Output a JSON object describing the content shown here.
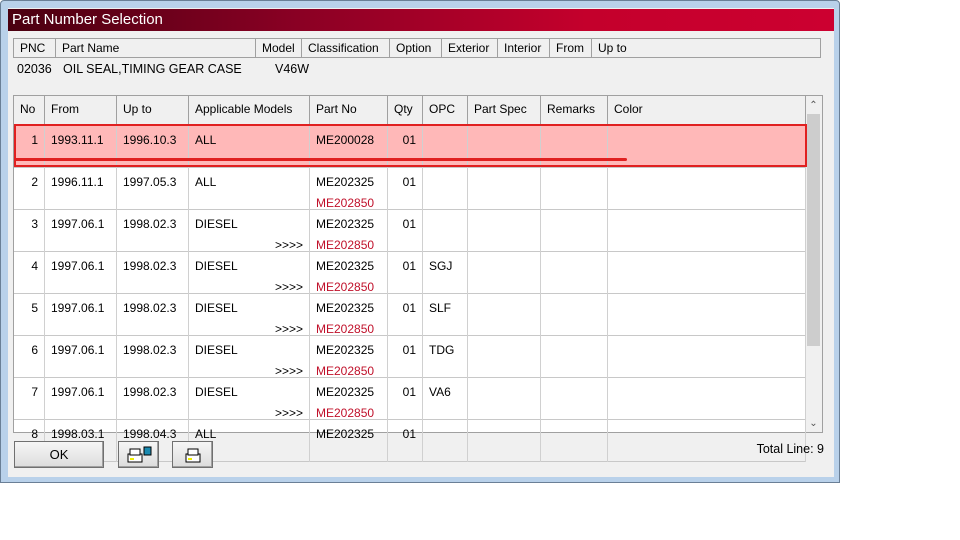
{
  "window": {
    "title": "Part Number Selection"
  },
  "part_header": {
    "columns": [
      "PNC",
      "Part Name",
      "Model",
      "Classification",
      "Option",
      "Exterior",
      "Interior",
      "From",
      "Up to"
    ],
    "values": {
      "pnc": "02036",
      "part_name": "OIL SEAL,TIMING GEAR CASE",
      "model": "V46W"
    }
  },
  "grid": {
    "columns": [
      "No",
      "From",
      "Up to",
      "Applicable Models",
      "Part No",
      "Qty",
      "OPC",
      "Part Spec",
      "Remarks",
      "Color"
    ],
    "rows": [
      {
        "no": "1",
        "from": "1993.11.1",
        "upto": "1996.10.3",
        "models": "ALL",
        "more": "",
        "part_no": "ME200028",
        "alt_part_no": "",
        "qty": "01",
        "opc": "",
        "selected": true
      },
      {
        "no": "2",
        "from": "1996.11.1",
        "upto": "1997.05.3",
        "models": "ALL",
        "more": "",
        "part_no": "ME202325",
        "alt_part_no": "ME202850",
        "qty": "01",
        "opc": ""
      },
      {
        "no": "3",
        "from": "1997.06.1",
        "upto": "1998.02.3",
        "models": "DIESEL",
        "more": ">>>>",
        "part_no": "ME202325",
        "alt_part_no": "ME202850",
        "qty": "01",
        "opc": ""
      },
      {
        "no": "4",
        "from": "1997.06.1",
        "upto": "1998.02.3",
        "models": "DIESEL",
        "more": ">>>>",
        "part_no": "ME202325",
        "alt_part_no": "ME202850",
        "qty": "01",
        "opc": "SGJ"
      },
      {
        "no": "5",
        "from": "1997.06.1",
        "upto": "1998.02.3",
        "models": "DIESEL",
        "more": ">>>>",
        "part_no": "ME202325",
        "alt_part_no": "ME202850",
        "qty": "01",
        "opc": "SLF"
      },
      {
        "no": "6",
        "from": "1997.06.1",
        "upto": "1998.02.3",
        "models": "DIESEL",
        "more": ">>>>",
        "part_no": "ME202325",
        "alt_part_no": "ME202850",
        "qty": "01",
        "opc": "TDG"
      },
      {
        "no": "7",
        "from": "1997.06.1",
        "upto": "1998.02.3",
        "models": "DIESEL",
        "more": ">>>>",
        "part_no": "ME202325",
        "alt_part_no": "ME202850",
        "qty": "01",
        "opc": "VA6"
      },
      {
        "no": "8",
        "from": "1998.03.1",
        "upto": "1998.04.3",
        "models": "ALL",
        "more": "",
        "part_no": "ME202325",
        "alt_part_no": "",
        "qty": "01",
        "opc": ""
      }
    ]
  },
  "footer": {
    "ok_label": "OK",
    "print_preview_icon": "printer-screen-icon",
    "print_icon": "printer-icon",
    "total_line": "Total Line: 9"
  },
  "colors": {
    "title_gradient_start": "#4a0010",
    "title_gradient_end": "#cc0030",
    "selected_row": "#ffb8b8",
    "highlight_border": "#e02020",
    "alt_part_no": "#c0102a"
  }
}
